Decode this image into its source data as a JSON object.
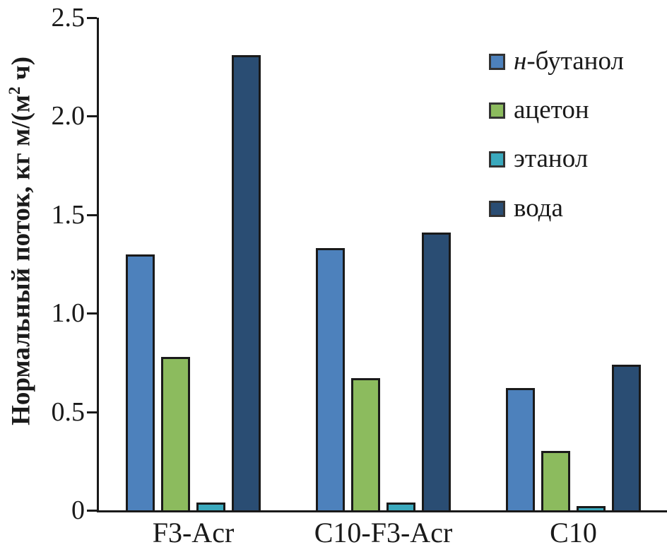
{
  "chart_data": {
    "type": "bar",
    "title": "",
    "ylabel": "Нормальный поток, кг м/(м² ч)",
    "ylabel_parts": {
      "pre": "Нормальный поток, кг м/(м",
      "sup": "2",
      "post": " ч)"
    },
    "xlabel": "",
    "categories": [
      "F3-Acr",
      "C10-F3-Acr",
      "C10"
    ],
    "series": [
      {
        "name": "н-бутанол",
        "italic_prefix": "н",
        "label_rest": "-бутанол",
        "color": "#4d81bc",
        "values": [
          1.3,
          1.33,
          0.62
        ]
      },
      {
        "name": "ацетон",
        "italic_prefix": "",
        "label_rest": "ацетон",
        "color": "#8cbb5e",
        "values": [
          0.78,
          0.67,
          0.3
        ]
      },
      {
        "name": "этанол",
        "italic_prefix": "",
        "label_rest": "этанол",
        "color": "#3aa9bd",
        "values": [
          0.04,
          0.04,
          0.02
        ]
      },
      {
        "name": "вода",
        "italic_prefix": "",
        "label_rest": "вода",
        "color": "#2a4d73",
        "values": [
          2.31,
          1.41,
          0.74
        ]
      }
    ],
    "ylim": [
      0,
      2.5
    ],
    "yticks": [
      {
        "value": 0.0,
        "label": "0"
      },
      {
        "value": 0.5,
        "label": "0.5"
      },
      {
        "value": 1.0,
        "label": "1.0"
      },
      {
        "value": 1.5,
        "label": "1.5"
      },
      {
        "value": 2.0,
        "label": "2.0"
      },
      {
        "value": 2.5,
        "label": "2.5"
      }
    ],
    "grid": false,
    "legend_position": "upper-right",
    "bar_outline_color": "#1a1a1a"
  }
}
